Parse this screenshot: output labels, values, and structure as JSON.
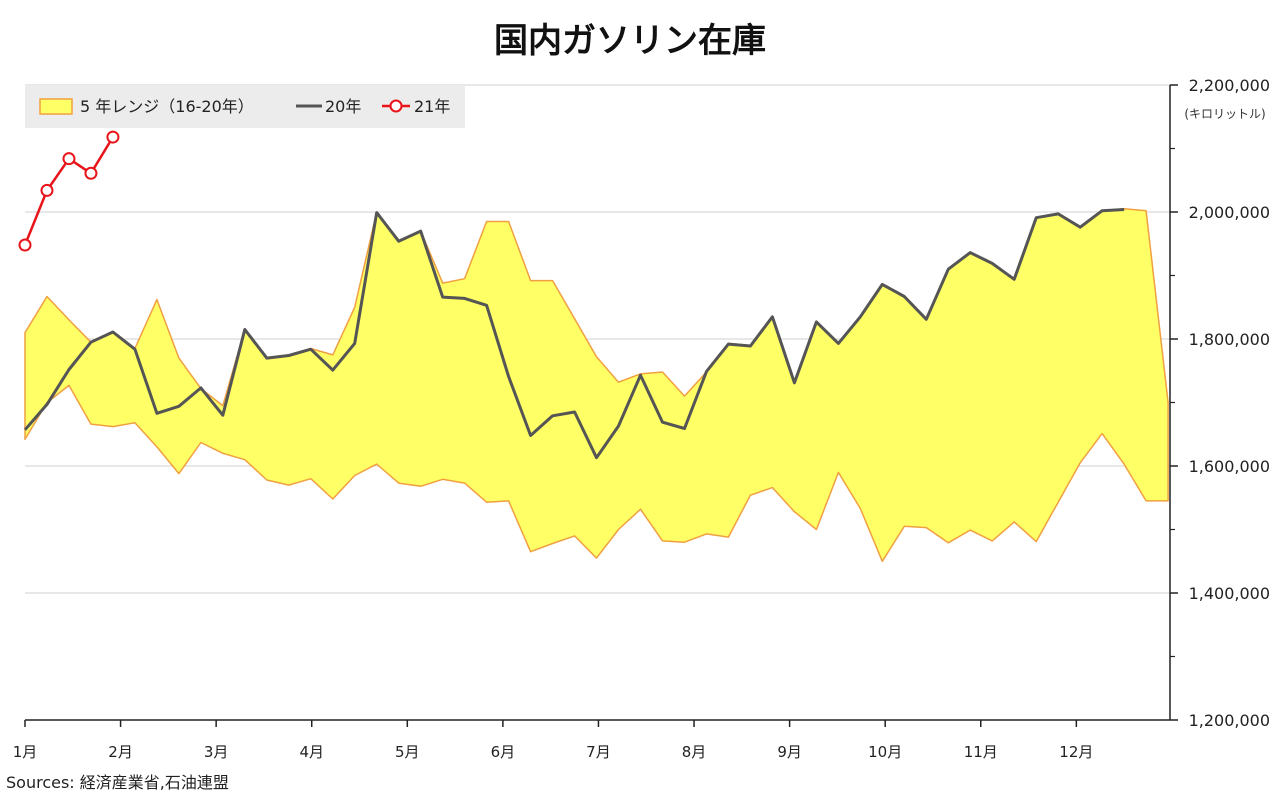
{
  "chart_data": {
    "title": "国内ガソリン在庫",
    "type": "line",
    "y_unit": "(キロリットル)",
    "ylim": [
      1200000,
      2200000
    ],
    "y_ticks": [
      1200000,
      1400000,
      1600000,
      1800000,
      2000000,
      2200000
    ],
    "y_tick_labels": [
      "1,200,000",
      "1,400,000",
      "1,600,000",
      "1,800,000",
      "2,000,000",
      "2,200,000"
    ],
    "y_axis_position": "right",
    "grid": "horizontal",
    "x_range": [
      1,
      12.98
    ],
    "x_ticks": [
      1,
      2,
      3,
      4,
      5,
      6,
      7,
      8,
      9,
      10,
      11,
      12
    ],
    "x_tick_labels": [
      "1月",
      "2月",
      "3月",
      "4月",
      "5月",
      "6月",
      "7月",
      "8月",
      "9月",
      "10月",
      "11月",
      "12月"
    ],
    "legend_position": "top-left",
    "legend": {
      "band_label": "5 年レンジ（16-20年）",
      "line20_label": "20年",
      "line21_label": "21年"
    },
    "colors": {
      "band_fill": "#ffff66",
      "band_edge": "#f0a040",
      "line20": "#555555",
      "line21": "#e8141a",
      "grid": "#d0d0d0",
      "legend_bg": "#ececec"
    },
    "band": {
      "x": [
        1.0,
        1.23,
        1.46,
        1.69,
        1.92,
        2.15,
        2.38,
        2.61,
        2.84,
        3.07,
        3.3,
        3.53,
        3.76,
        3.99,
        4.22,
        4.45,
        4.68,
        4.91,
        5.14,
        5.37,
        5.6,
        5.83,
        6.06,
        6.29,
        6.52,
        6.75,
        6.98,
        7.21,
        7.44,
        7.67,
        7.9,
        8.13,
        8.36,
        8.59,
        8.82,
        9.05,
        9.28,
        9.51,
        9.74,
        9.97,
        10.2,
        10.43,
        10.66,
        10.89,
        11.12,
        11.35,
        11.58,
        11.81,
        12.04,
        12.27,
        12.5,
        12.73,
        12.96
      ],
      "upper": [
        1810000,
        1867000,
        1830000,
        1795000,
        1812000,
        1785000,
        1862000,
        1770000,
        1722000,
        1695000,
        1815000,
        1770000,
        1774000,
        1785000,
        1775000,
        1850000,
        2000000,
        1955000,
        1970000,
        1888000,
        1895000,
        1985000,
        1985000,
        1892000,
        1892000,
        1832000,
        1772000,
        1732000,
        1745000,
        1748000,
        1710000,
        1748000,
        1793000,
        1790000,
        1835000,
        1732000,
        1828000,
        1793000,
        1835000,
        1886000,
        1867000,
        1832000,
        1910000,
        1936000,
        1919000,
        1894000,
        1991000,
        1998000,
        1976000,
        2002000,
        2005000,
        2002000,
        1700000
      ],
      "lower": [
        1642000,
        1700000,
        1727000,
        1666000,
        1662000,
        1668000,
        1630000,
        1588000,
        1637000,
        1620000,
        1610000,
        1578000,
        1570000,
        1580000,
        1548000,
        1585000,
        1603000,
        1573000,
        1568000,
        1579000,
        1573000,
        1543000,
        1545000,
        1465000,
        1478000,
        1490000,
        1455000,
        1500000,
        1532000,
        1482000,
        1480000,
        1493000,
        1488000,
        1554000,
        1566000,
        1528000,
        1500000,
        1590000,
        1533000,
        1450000,
        1505000,
        1503000,
        1479000,
        1499000,
        1482000,
        1512000,
        1481000,
        1543000,
        1605000,
        1651000,
        1603000,
        1545000,
        1545000
      ]
    },
    "series": [
      {
        "name": "20年",
        "x": [
          1.0,
          1.23,
          1.46,
          1.69,
          1.92,
          2.15,
          2.38,
          2.61,
          2.84,
          3.07,
          3.3,
          3.53,
          3.76,
          3.99,
          4.22,
          4.45,
          4.68,
          4.91,
          5.14,
          5.37,
          5.6,
          5.83,
          6.06,
          6.29,
          6.52,
          6.75,
          6.98,
          7.21,
          7.44,
          7.67,
          7.9,
          8.13,
          8.36,
          8.59,
          8.82,
          9.05,
          9.28,
          9.51,
          9.74,
          9.97,
          10.2,
          10.43,
          10.66,
          10.89,
          11.12,
          11.35,
          11.58,
          11.81,
          12.04,
          12.27,
          12.5
        ],
        "values": [
          1657000,
          1697000,
          1752000,
          1795000,
          1811000,
          1784000,
          1683000,
          1694000,
          1723000,
          1680000,
          1815000,
          1770000,
          1774000,
          1784000,
          1751000,
          1793000,
          1999000,
          1954000,
          1970000,
          1866000,
          1864000,
          1853000,
          1741000,
          1648000,
          1679000,
          1685000,
          1613000,
          1663000,
          1743000,
          1669000,
          1659000,
          1749000,
          1792000,
          1789000,
          1835000,
          1731000,
          1827000,
          1793000,
          1835000,
          1886000,
          1867000,
          1831000,
          1910000,
          1936000,
          1919000,
          1894000,
          1991000,
          1997000,
          1976000,
          2002000,
          2004000
        ]
      },
      {
        "name": "21年",
        "x": [
          1.0,
          1.23,
          1.46,
          1.69,
          1.92
        ],
        "values": [
          1948000,
          2034000,
          2084000,
          2061000,
          2118000
        ]
      }
    ]
  },
  "source": "Sources: 経済産業省,石油連盟"
}
